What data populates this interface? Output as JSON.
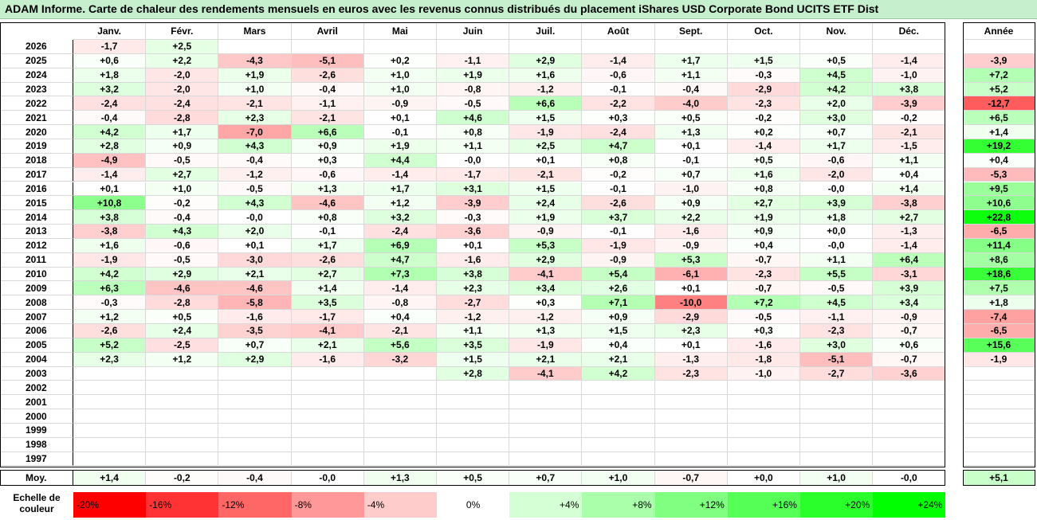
{
  "title": "ADAM Informe. Carte de chaleur des rendements mensuels en euros avec les revenus connus distribués du placement iShares USD Corporate Bond UCITS ETF Dist",
  "chart_data": {
    "type": "heatmap",
    "title": "ADAM Informe. Carte de chaleur des rendements mensuels en euros avec les revenus connus distribués du placement iShares USD Corporate Bond UCITS ETF Dist",
    "columns": [
      "Janv.",
      "Févr.",
      "Mars",
      "Avril",
      "Mai",
      "Juin",
      "Juil.",
      "Août",
      "Sept.",
      "Oct.",
      "Nov.",
      "Déc."
    ],
    "year_column_label": "Année",
    "rows": [
      {
        "year": "2026",
        "months": [
          "-1,7",
          "+2,5",
          "",
          "",
          "",
          "",
          "",
          "",
          "",
          "",
          "",
          ""
        ],
        "annual": ""
      },
      {
        "year": "2025",
        "months": [
          "+0,6",
          "+2,2",
          "-4,3",
          "-5,1",
          "+0,2",
          "-1,1",
          "+2,9",
          "-1,4",
          "+1,7",
          "+1,5",
          "+0,5",
          "-1,4"
        ],
        "annual": "-3,9"
      },
      {
        "year": "2024",
        "months": [
          "+1,8",
          "-2,0",
          "+1,9",
          "-2,6",
          "+1,0",
          "+1,9",
          "+1,6",
          "-0,6",
          "+1,1",
          "-0,3",
          "+4,5",
          "-1,0"
        ],
        "annual": "+7,2"
      },
      {
        "year": "2023",
        "months": [
          "+3,2",
          "-2,0",
          "+1,0",
          "-0,4",
          "+1,0",
          "-0,8",
          "-1,2",
          "-0,1",
          "-0,4",
          "-2,9",
          "+4,2",
          "+3,8"
        ],
        "annual": "+5,2"
      },
      {
        "year": "2022",
        "months": [
          "-2,4",
          "-2,4",
          "-2,1",
          "-1,1",
          "-0,9",
          "-0,5",
          "+6,6",
          "-2,2",
          "-4,0",
          "-2,3",
          "+2,0",
          "-3,9"
        ],
        "annual": "-12,7"
      },
      {
        "year": "2021",
        "months": [
          "-0,4",
          "-2,8",
          "+2,3",
          "-2,1",
          "+0,1",
          "+4,6",
          "+1,5",
          "+0,3",
          "+0,5",
          "-0,2",
          "+3,0",
          "-0,2"
        ],
        "annual": "+6,5"
      },
      {
        "year": "2020",
        "months": [
          "+4,2",
          "+1,7",
          "-7,0",
          "+6,6",
          "-0,1",
          "+0,8",
          "-1,9",
          "-2,4",
          "+1,3",
          "+0,2",
          "+0,7",
          "-2,1"
        ],
        "annual": "+1,4"
      },
      {
        "year": "2019",
        "months": [
          "+2,8",
          "+0,9",
          "+4,3",
          "+0,9",
          "+1,9",
          "+1,1",
          "+2,5",
          "+4,7",
          "+0,1",
          "-1,4",
          "+1,7",
          "-1,5"
        ],
        "annual": "+19,2"
      },
      {
        "year": "2018",
        "months": [
          "-4,9",
          "-0,5",
          "-0,4",
          "+0,3",
          "+4,4",
          "-0,0",
          "+0,1",
          "+0,8",
          "-0,1",
          "+0,5",
          "-0,6",
          "+1,1"
        ],
        "annual": "+0,4"
      },
      {
        "year": "2017",
        "months": [
          "-1,4",
          "+2,7",
          "-1,2",
          "-0,6",
          "-1,4",
          "-1,7",
          "-2,1",
          "-0,2",
          "+0,7",
          "+1,6",
          "-2,0",
          "+0,4"
        ],
        "annual": "-5,3"
      },
      {
        "year": "2016",
        "months": [
          "+0,1",
          "+1,0",
          "-0,5",
          "+1,3",
          "+1,7",
          "+3,1",
          "+1,5",
          "-0,1",
          "-1,0",
          "+0,8",
          "-0,0",
          "+1,4"
        ],
        "annual": "+9,5"
      },
      {
        "year": "2015",
        "months": [
          "+10,8",
          "-0,2",
          "+4,3",
          "-4,6",
          "+1,2",
          "-3,9",
          "+2,4",
          "-2,6",
          "+0,9",
          "+2,7",
          "+3,9",
          "-3,8"
        ],
        "annual": "+10,6"
      },
      {
        "year": "2014",
        "months": [
          "+3,8",
          "-0,4",
          "-0,0",
          "+0,8",
          "+3,2",
          "-0,3",
          "+1,9",
          "+3,7",
          "+2,2",
          "+1,9",
          "+1,8",
          "+2,7"
        ],
        "annual": "+22,8"
      },
      {
        "year": "2013",
        "months": [
          "-3,8",
          "+4,3",
          "+2,0",
          "-0,1",
          "-2,4",
          "-3,6",
          "-0,9",
          "-0,1",
          "-1,6",
          "+0,9",
          "+0,0",
          "-1,3"
        ],
        "annual": "-6,5"
      },
      {
        "year": "2012",
        "months": [
          "+1,6",
          "-0,6",
          "+0,1",
          "+1,7",
          "+6,9",
          "+0,1",
          "+5,3",
          "-1,9",
          "-0,9",
          "+0,4",
          "-0,0",
          "-1,4"
        ],
        "annual": "+11,4"
      },
      {
        "year": "2011",
        "months": [
          "-1,9",
          "-0,5",
          "-3,0",
          "-2,6",
          "+4,7",
          "-1,6",
          "+2,9",
          "-0,9",
          "+5,3",
          "-0,7",
          "+1,1",
          "+6,4"
        ],
        "annual": "+8,6"
      },
      {
        "year": "2010",
        "months": [
          "+4,2",
          "+2,9",
          "+2,1",
          "+2,7",
          "+7,3",
          "+3,8",
          "-4,1",
          "+5,4",
          "-6,1",
          "-2,3",
          "+5,5",
          "-3,1"
        ],
        "annual": "+18,6"
      },
      {
        "year": "2009",
        "months": [
          "+6,3",
          "-4,6",
          "-4,6",
          "+1,4",
          "-1,4",
          "+2,3",
          "+3,4",
          "+2,6",
          "+0,1",
          "-0,7",
          "-0,5",
          "+3,9"
        ],
        "annual": "+7,5"
      },
      {
        "year": "2008",
        "months": [
          "-0,3",
          "-2,8",
          "-5,8",
          "+3,5",
          "-0,8",
          "-2,7",
          "+0,3",
          "+7,1",
          "-10,0",
          "+7,2",
          "+4,5",
          "+3,4"
        ],
        "annual": "+1,8"
      },
      {
        "year": "2007",
        "months": [
          "+1,2",
          "+0,5",
          "-1,6",
          "-1,7",
          "+0,4",
          "-1,2",
          "-1,2",
          "+0,9",
          "-2,9",
          "-0,5",
          "-1,1",
          "-0,9"
        ],
        "annual": "-7,4"
      },
      {
        "year": "2006",
        "months": [
          "-2,6",
          "+2,4",
          "-3,5",
          "-4,1",
          "-2,1",
          "+1,1",
          "+1,3",
          "+1,5",
          "+2,3",
          "+0,3",
          "-2,3",
          "-0,7"
        ],
        "annual": "-6,5"
      },
      {
        "year": "2005",
        "months": [
          "+5,2",
          "-2,5",
          "+0,7",
          "+2,1",
          "+5,6",
          "+3,5",
          "-1,9",
          "+0,4",
          "+0,1",
          "-1,6",
          "+3,0",
          "+0,6"
        ],
        "annual": "+15,6"
      },
      {
        "year": "2004",
        "months": [
          "+2,3",
          "+1,2",
          "+2,9",
          "-1,6",
          "-3,2",
          "+1,5",
          "+2,1",
          "+2,1",
          "-1,3",
          "-1,8",
          "-5,1",
          "-0,7"
        ],
        "annual": "-1,9"
      },
      {
        "year": "2003",
        "months": [
          "",
          "",
          "",
          "",
          "",
          "+2,8",
          "-4,1",
          "+4,2",
          "-2,3",
          "-1,0",
          "-2,7",
          "-3,6"
        ],
        "annual": ""
      },
      {
        "year": "2002",
        "months": [
          "",
          "",
          "",
          "",
          "",
          "",
          "",
          "",
          "",
          "",
          "",
          ""
        ],
        "annual": ""
      },
      {
        "year": "2001",
        "months": [
          "",
          "",
          "",
          "",
          "",
          "",
          "",
          "",
          "",
          "",
          "",
          ""
        ],
        "annual": ""
      },
      {
        "year": "2000",
        "months": [
          "",
          "",
          "",
          "",
          "",
          "",
          "",
          "",
          "",
          "",
          "",
          ""
        ],
        "annual": ""
      },
      {
        "year": "1999",
        "months": [
          "",
          "",
          "",
          "",
          "",
          "",
          "",
          "",
          "",
          "",
          "",
          ""
        ],
        "annual": ""
      },
      {
        "year": "1998",
        "months": [
          "",
          "",
          "",
          "",
          "",
          "",
          "",
          "",
          "",
          "",
          "",
          ""
        ],
        "annual": ""
      },
      {
        "year": "1997",
        "months": [
          "",
          "",
          "",
          "",
          "",
          "",
          "",
          "",
          "",
          "",
          "",
          ""
        ],
        "annual": ""
      }
    ],
    "average_row": {
      "label": "Moy.",
      "months": [
        "+1,4",
        "-0,2",
        "-0,4",
        "-0,0",
        "+1,3",
        "+0,5",
        "+0,7",
        "+1,0",
        "-0,7",
        "+0,0",
        "+1,0",
        "-0,0"
      ],
      "annual": "+5,1"
    },
    "color_scale": {
      "label_line1": "Echelle de",
      "label_line2": "couleur",
      "stops": [
        {
          "label": "-20%",
          "value": -20
        },
        {
          "label": "-16%",
          "value": -16
        },
        {
          "label": "-12%",
          "value": -12
        },
        {
          "label": "-8%",
          "value": -8
        },
        {
          "label": "-4%",
          "value": -4
        },
        {
          "label": "0%",
          "value": 0
        },
        {
          "label": "+4%",
          "value": 4
        },
        {
          "label": "+8%",
          "value": 8
        },
        {
          "label": "+12%",
          "value": 12
        },
        {
          "label": "+16%",
          "value": 16
        },
        {
          "label": "+20%",
          "value": 20
        },
        {
          "label": "+24%",
          "value": 24
        }
      ]
    },
    "colors": {
      "negative_max": "#ff0000",
      "neutral": "#ffffff",
      "positive_max": "#00ff00"
    }
  }
}
